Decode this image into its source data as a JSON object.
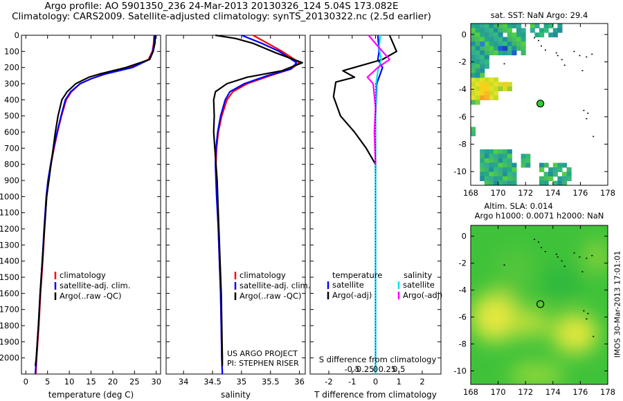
{
  "header": {
    "title_line1": "Argo profile: AO 5901350_236 24-Mar-2013 20130326_124 5.04S 173.082E",
    "title_line2": "Climatology: CARS2009. Satellite-adjusted climatology: synTS_20130322.nc (2.5d earlier)"
  },
  "footer_vertical": "IMOS 30-Mar-2013 17:01:01",
  "project": {
    "line1": "US ARGO PROJECT",
    "line2": "PI: STEPHEN RISER"
  },
  "colors": {
    "climatology": "#ff0000",
    "satellite": "#0000ff",
    "argo": "#000000",
    "sat_salinity": "#00e5e5",
    "argo_salinity": "#ff00ff"
  },
  "chart_data": [
    {
      "type": "line",
      "name": "temperature-profile",
      "xlabel": "temperature (deg C)",
      "ylabel": "",
      "xlim": [
        -1,
        31
      ],
      "ylim": [
        2100,
        0
      ],
      "xticks": [
        0,
        5,
        10,
        15,
        20,
        25,
        30
      ],
      "yticks": [
        0,
        100,
        200,
        300,
        400,
        500,
        600,
        700,
        800,
        900,
        1000,
        1100,
        1200,
        1300,
        1400,
        1500,
        1600,
        1700,
        1800,
        1900,
        2000
      ],
      "legend": {
        "placement": "lower-left",
        "entries": [
          "climatology",
          "satellite-adj. clim.",
          "Argo(..raw -QC)"
        ]
      },
      "series": [
        {
          "name": "climatology",
          "color": "#ff0000",
          "points": [
            [
              29.5,
              0
            ],
            [
              29.4,
              50
            ],
            [
              29.1,
              100
            ],
            [
              28.2,
              150
            ],
            [
              24,
              200
            ],
            [
              18,
              240
            ],
            [
              15,
              270
            ],
            [
              12.5,
              300
            ],
            [
              10.5,
              350
            ],
            [
              9.3,
              400
            ],
            [
              8.2,
              500
            ],
            [
              7.3,
              600
            ],
            [
              6.5,
              700
            ],
            [
              5.8,
              800
            ],
            [
              5.2,
              900
            ],
            [
              4.8,
              1000
            ],
            [
              4.3,
              1200
            ],
            [
              3.9,
              1400
            ],
            [
              3.4,
              1600
            ],
            [
              3,
              1800
            ],
            [
              2.5,
              2000
            ],
            [
              2.3,
              2100
            ]
          ]
        },
        {
          "name": "satellite-adj. clim.",
          "color": "#0000ff",
          "points": [
            [
              29.6,
              0
            ],
            [
              29.5,
              50
            ],
            [
              29.2,
              100
            ],
            [
              28.4,
              150
            ],
            [
              24.5,
              200
            ],
            [
              18.3,
              240
            ],
            [
              15,
              270
            ],
            [
              12.5,
              300
            ],
            [
              10.3,
              350
            ],
            [
              9.1,
              400
            ],
            [
              8.1,
              500
            ],
            [
              7.2,
              600
            ],
            [
              6.4,
              700
            ],
            [
              5.7,
              800
            ],
            [
              5.1,
              900
            ],
            [
              4.7,
              1000
            ],
            [
              4.2,
              1200
            ],
            [
              3.8,
              1400
            ],
            [
              3.3,
              1600
            ],
            [
              2.9,
              1800
            ],
            [
              2.4,
              2000
            ],
            [
              2.2,
              2100
            ]
          ]
        },
        {
          "name": "Argo(..raw -QC)",
          "color": "#000000",
          "points": [
            [
              29.8,
              0
            ],
            [
              29.7,
              50
            ],
            [
              29.3,
              100
            ],
            [
              28.5,
              150
            ],
            [
              23,
              200
            ],
            [
              17,
              240
            ],
            [
              14.5,
              260
            ],
            [
              11.5,
              300
            ],
            [
              9.5,
              350
            ],
            [
              8.3,
              400
            ],
            [
              7.4,
              500
            ],
            [
              6.8,
              600
            ],
            [
              6.3,
              700
            ],
            [
              5.8,
              800
            ],
            [
              5.3,
              900
            ],
            [
              4.8,
              1000
            ],
            [
              4.3,
              1200
            ],
            [
              3.8,
              1400
            ],
            [
              3.3,
              1600
            ],
            [
              2.9,
              1800
            ],
            [
              2.4,
              2000
            ],
            [
              2.2,
              2050
            ]
          ]
        }
      ]
    },
    {
      "type": "line",
      "name": "salinity-profile",
      "xlabel": "salinity",
      "xlim": [
        33.7,
        36.1
      ],
      "ylim": [
        2100,
        0
      ],
      "xticks": [
        34,
        34.5,
        35,
        35.5,
        36
      ],
      "legend": {
        "placement": "lower-right",
        "entries": [
          "climatology",
          "satellite-adj. clim.",
          "Argo(..raw -QC)"
        ]
      },
      "series": [
        {
          "name": "climatology",
          "color": "#ff0000",
          "points": [
            [
              35.2,
              0
            ],
            [
              35.45,
              50
            ],
            [
              35.7,
              100
            ],
            [
              36,
              170
            ],
            [
              35.85,
              210
            ],
            [
              35.5,
              250
            ],
            [
              35.1,
              300
            ],
            [
              34.85,
              350
            ],
            [
              34.75,
              400
            ],
            [
              34.66,
              500
            ],
            [
              34.6,
              600
            ],
            [
              34.57,
              700
            ],
            [
              34.56,
              800
            ],
            [
              34.57,
              900
            ],
            [
              34.58,
              1000
            ],
            [
              34.6,
              1200
            ],
            [
              34.62,
              1400
            ],
            [
              34.64,
              1600
            ],
            [
              34.65,
              1800
            ],
            [
              34.66,
              2000
            ],
            [
              34.67,
              2100
            ]
          ]
        },
        {
          "name": "satellite-adj. clim.",
          "color": "#0000ff",
          "points": [
            [
              35,
              0
            ],
            [
              35.35,
              50
            ],
            [
              35.65,
              100
            ],
            [
              35.95,
              170
            ],
            [
              35.85,
              210
            ],
            [
              35.45,
              250
            ],
            [
              35.05,
              300
            ],
            [
              34.8,
              350
            ],
            [
              34.72,
              400
            ],
            [
              34.64,
              500
            ],
            [
              34.59,
              600
            ],
            [
              34.56,
              700
            ],
            [
              34.55,
              800
            ],
            [
              34.56,
              900
            ],
            [
              34.57,
              1000
            ],
            [
              34.6,
              1200
            ],
            [
              34.62,
              1400
            ],
            [
              34.64,
              1600
            ],
            [
              34.65,
              1800
            ],
            [
              34.66,
              2000
            ],
            [
              34.67,
              2100
            ]
          ]
        },
        {
          "name": "Argo(..raw -QC)",
          "color": "#000000",
          "points": [
            [
              34.55,
              0
            ],
            [
              34.9,
              20
            ],
            [
              35.2,
              50
            ],
            [
              35.6,
              110
            ],
            [
              36.05,
              170
            ],
            [
              35.7,
              220
            ],
            [
              35.1,
              260
            ],
            [
              34.75,
              300
            ],
            [
              34.55,
              350
            ],
            [
              34.52,
              400
            ],
            [
              34.53,
              500
            ],
            [
              34.52,
              600
            ],
            [
              34.54,
              700
            ],
            [
              34.56,
              800
            ],
            [
              34.58,
              900
            ],
            [
              34.59,
              1000
            ],
            [
              34.61,
              1200
            ],
            [
              34.63,
              1400
            ],
            [
              34.65,
              1600
            ],
            [
              34.66,
              1800
            ],
            [
              34.67,
              2000
            ],
            [
              34.67,
              2050
            ]
          ]
        }
      ]
    },
    {
      "type": "line",
      "name": "difference-profile",
      "xlabel": "T difference from climatology",
      "xlabel_top": "S difference from climatology",
      "xlim": [
        -2.8,
        2.8
      ],
      "ylim": [
        2100,
        0
      ],
      "xticks": [
        -2,
        -1,
        0,
        1,
        2
      ],
      "secondary_xticks": [
        -0.5,
        -0.25,
        0,
        0.25,
        0.5
      ],
      "legend": {
        "placement": "lower-center",
        "groups": [
          {
            "title": "temperature",
            "entries": [
              "satellite",
              "Argo(-adj)"
            ]
          },
          {
            "title": "salinity",
            "entries": [
              "satellite",
              "Argo(-adj)"
            ]
          }
        ]
      },
      "series": [
        {
          "name": "temperature satellite",
          "color": "#0000ff",
          "points": [
            [
              0.1,
              0
            ],
            [
              0.15,
              100
            ],
            [
              0.1,
              150
            ],
            [
              0.3,
              200
            ],
            [
              0.05,
              300
            ],
            [
              0,
              500
            ],
            [
              0,
              800
            ],
            [
              0,
              2100
            ]
          ]
        },
        {
          "name": "temperature Argo(-adj)",
          "color": "#000000",
          "points": [
            [
              0.6,
              0
            ],
            [
              0.9,
              100
            ],
            [
              0.3,
              150
            ],
            [
              -1.4,
              220
            ],
            [
              -0.9,
              260
            ],
            [
              -1.7,
              290
            ],
            [
              -1.8,
              380
            ],
            [
              -1.5,
              500
            ],
            [
              -0.9,
              600
            ],
            [
              -0.4,
              700
            ],
            [
              0,
              800
            ],
            [
              0,
              850
            ]
          ]
        },
        {
          "name": "salinity satellite",
          "color": "#00e5e5",
          "points": [
            [
              0.2,
              0
            ],
            [
              0.15,
              80
            ],
            [
              0.25,
              150
            ],
            [
              0.1,
              220
            ],
            [
              0.02,
              300
            ],
            [
              0,
              500
            ],
            [
              0,
              2100
            ]
          ]
        },
        {
          "name": "salinity Argo(-adj)",
          "color": "#ff00ff",
          "points": [
            [
              -0.3,
              0
            ],
            [
              0.05,
              60
            ],
            [
              0.6,
              150
            ],
            [
              0.1,
              200
            ],
            [
              -0.35,
              260
            ],
            [
              -0.1,
              300
            ],
            [
              0,
              450
            ],
            [
              -0.05,
              600
            ],
            [
              0,
              800
            ]
          ]
        }
      ]
    },
    {
      "type": "heatmap",
      "name": "sst-map",
      "title": "sat. SST: NaN Argo: 29.4",
      "xlim": [
        168,
        178
      ],
      "ylim": [
        -11,
        0.8
      ],
      "xticks": [
        168,
        170,
        172,
        174,
        176,
        178
      ],
      "yticks": [
        0,
        -2,
        -4,
        -6,
        -8,
        -10
      ],
      "argo_position": {
        "lon": 173.082,
        "lat": -5.04
      }
    },
    {
      "type": "heatmap",
      "name": "sla-map",
      "title_line1": "Altim. SLA: 0.014",
      "title_line2": "Argo h1000: 0.0071 h2000: NaN",
      "xlim": [
        168,
        178
      ],
      "ylim": [
        -11,
        0.8
      ],
      "xticks": [
        168,
        170,
        172,
        174,
        176,
        178
      ],
      "yticks": [
        0,
        -2,
        -4,
        -6,
        -8,
        -10
      ],
      "argo_position": {
        "lon": 173.082,
        "lat": -5.04
      }
    }
  ]
}
